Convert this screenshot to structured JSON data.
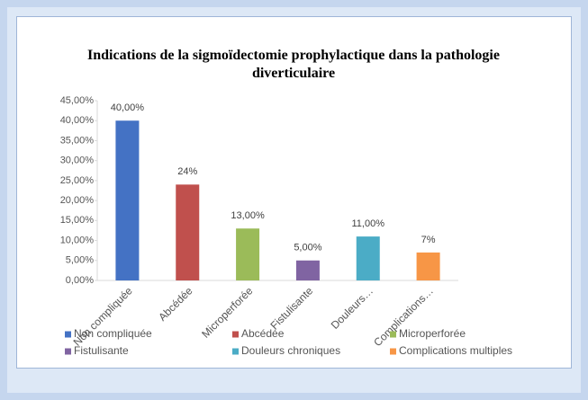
{
  "chart_data": {
    "type": "bar",
    "title": "Indications de la sigmoïdectomie prophylactique dans la pathologie diverticulaire",
    "categories": [
      "Non compliquée",
      "Abcédée",
      "Microperforée",
      "Fistulisante",
      "Douleurs…",
      "Complications…"
    ],
    "values": [
      40,
      24,
      13,
      5,
      11,
      7
    ],
    "value_labels": [
      "40,00%",
      "24%",
      "13,00%",
      "5,00%",
      "11,00%",
      "7%"
    ],
    "colors": [
      "#4472c4",
      "#c0504d",
      "#9bbb59",
      "#8064a2",
      "#4bacc6",
      "#f79646"
    ],
    "legend": [
      "Non compliquée",
      "Abcédée",
      "Microperforée",
      "Fistulisante",
      "Douleurs chroniques",
      "Complications multiples"
    ],
    "ylim": [
      0,
      45
    ],
    "yticks": [
      {
        "value": 0,
        "label": "0,00%"
      },
      {
        "value": 5,
        "label": "5,00%"
      },
      {
        "value": 10,
        "label": "10,00%"
      },
      {
        "value": 15,
        "label": "15,00%"
      },
      {
        "value": 20,
        "label": "20,00%"
      },
      {
        "value": 25,
        "label": "25,00%"
      },
      {
        "value": 30,
        "label": "30,00%"
      },
      {
        "value": 35,
        "label": "35,00%"
      },
      {
        "value": 40,
        "label": "40,00%"
      },
      {
        "value": 45,
        "label": "45,00%"
      }
    ],
    "grid": false
  }
}
